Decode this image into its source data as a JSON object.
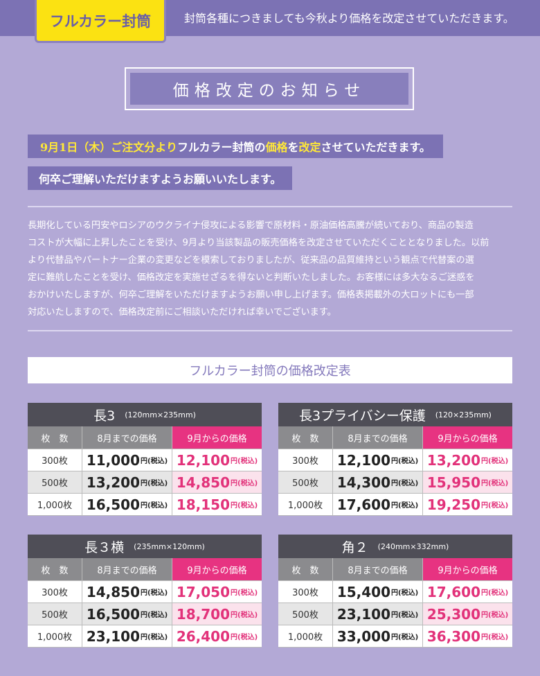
{
  "header": {
    "tag": "フルカラー封筒",
    "message": "封筒各種につきましても今秋より価格を改定させていただきます。"
  },
  "title": "価格改定のお知らせ",
  "announcement": {
    "line1_yellow": "9月1日（木）ご注文分より",
    "line1_a": "フルカラー封筒の",
    "line1_b": "価格",
    "line1_c": "を",
    "line1_d": "改定",
    "line1_e": "させていただきます。",
    "line2": "何卒ご理解いただけますようお願いいたします。"
  },
  "body": [
    "長期化している円安やロシアのウクライナ侵攻による影響で原材料・原油価格高騰が続いており、商品の製造",
    "コストが大幅に上昇したことを受け、9月より当該製品の販売価格を改定させていただくこととなりました。以前",
    "より代替品やパートナー企業の変更などを模索しておりましたが、従来品の品質維持という観点で代替案の選",
    "定に難航したことを受け、価格改定を実施せざるを得ないと判断いたしました。お客様には多大なるご迷惑を",
    "おかけいたしますが、何卒ご理解をいただけますようお願い申し上げます。価格表掲載外の大ロットにも一部",
    "対応いたしますので、価格改定前にご相談いただければ幸いでございます。"
  ],
  "table_title": "フルカラー封筒の価格改定表",
  "col_headers": {
    "qty": "枚　数",
    "old": "8月までの価格",
    "new": "9月からの価格"
  },
  "unit": "円(税込)",
  "tables": [
    {
      "name": "長3",
      "size": "(120mm×235mm)",
      "rows": [
        {
          "qty": "300枚",
          "old": "11,000",
          "new": "12,100"
        },
        {
          "qty": "500枚",
          "old": "13,200",
          "new": "14,850"
        },
        {
          "qty": "1,000枚",
          "old": "16,500",
          "new": "18,150"
        }
      ]
    },
    {
      "name": "長3プライバシー保護",
      "size": "(120×235mm)",
      "rows": [
        {
          "qty": "300枚",
          "old": "12,100",
          "new": "13,200"
        },
        {
          "qty": "500枚",
          "old": "14,300",
          "new": "15,950"
        },
        {
          "qty": "1,000枚",
          "old": "17,600",
          "new": "19,250"
        }
      ]
    },
    {
      "name": "長３横",
      "size": "(235mm×120mm)",
      "rows": [
        {
          "qty": "300枚",
          "old": "14,850",
          "new": "17,050"
        },
        {
          "qty": "500枚",
          "old": "16,500",
          "new": "18,700"
        },
        {
          "qty": "1,000枚",
          "old": "23,100",
          "new": "26,400"
        }
      ]
    },
    {
      "name": "角２",
      "size": "(240mm×332mm)",
      "rows": [
        {
          "qty": "300枚",
          "old": "15,400",
          "new": "17,600"
        },
        {
          "qty": "500枚",
          "old": "23,100",
          "new": "25,300"
        },
        {
          "qty": "1,000枚",
          "old": "33,000",
          "new": "36,300"
        }
      ]
    }
  ],
  "colors": {
    "purple": "#7c72b4",
    "background": "#b3a9d6",
    "yellow": "#fbe212",
    "pink": "#e73381",
    "dark": "#4f4e57"
  }
}
